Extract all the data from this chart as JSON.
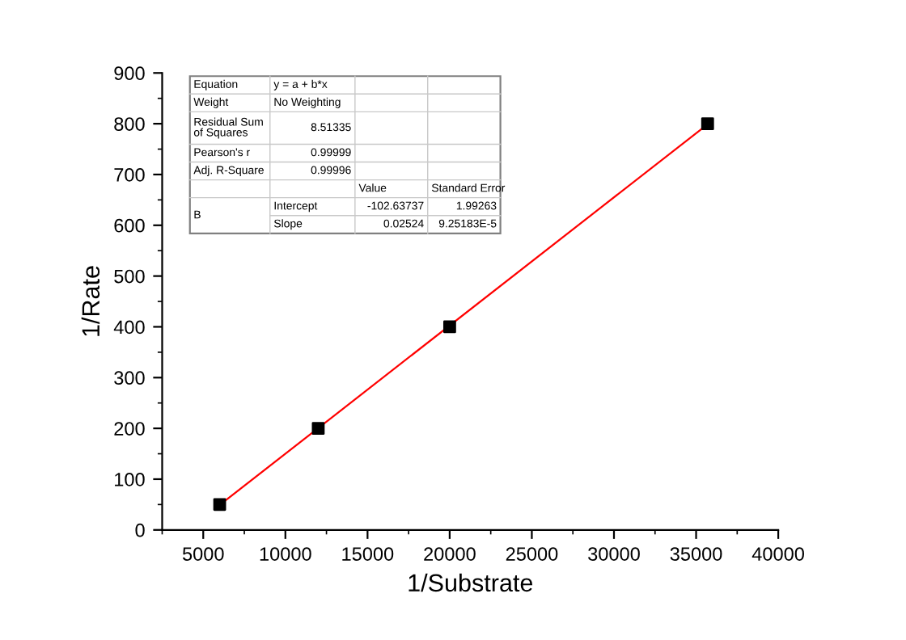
{
  "chart_data": {
    "type": "scatter",
    "xlabel": "1/Substrate",
    "ylabel": "1/Rate",
    "x": [
      6000,
      12000,
      20000,
      35700
    ],
    "series": [
      {
        "color": "#000000",
        "values": [
          50,
          200,
          400,
          800
        ],
        "marker": "square"
      },
      {
        "type": "line",
        "color": "#ff0000",
        "x": [
          6000,
          35700
        ],
        "values": [
          49,
          799
        ],
        "marker": "none",
        "line_style": "solid"
      }
    ],
    "xlim": [
      2500,
      40000
    ],
    "xticks": [
      5000,
      10000,
      15000,
      20000,
      25000,
      30000,
      35000,
      40000
    ],
    "ylim": [
      0,
      900
    ],
    "yticks": [
      0,
      100,
      200,
      300,
      400,
      500,
      600,
      700,
      800,
      900
    ],
    "grid": false,
    "legend": false,
    "annotations": [
      "Equation",
      "y = a + b*x",
      "Weight",
      "No Weighting",
      "Residual Sum\nof Squares",
      "8.51335",
      "Pearson's r",
      "0.99999",
      "Adj. R-Square",
      "0.99996",
      "Value",
      "Standard Error",
      "B",
      "Intercept",
      "-102.63737",
      "1.99263",
      "Slope",
      "0.02524",
      "9.25183E-5"
    ]
  }
}
